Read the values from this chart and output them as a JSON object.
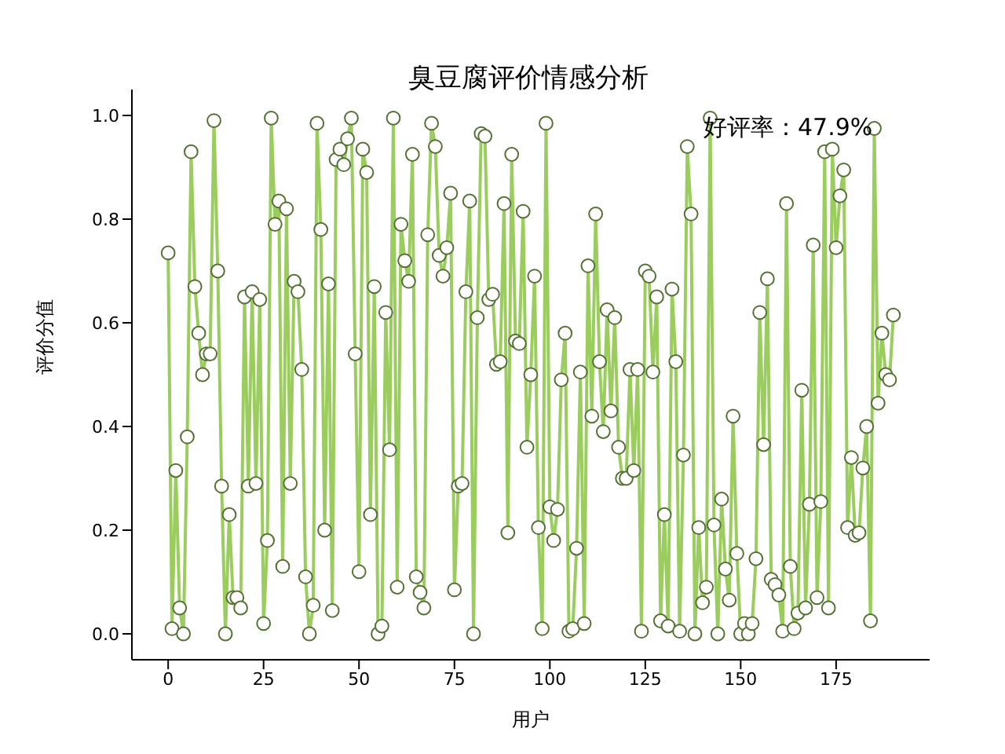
{
  "chart_data": {
    "type": "line",
    "title": "臭豆腐评价情感分析",
    "xlabel": "用户",
    "ylabel": "评价分值",
    "annotations": [
      "好评率：47.9%"
    ],
    "x": [
      0,
      1,
      2,
      3,
      4,
      5,
      6,
      7,
      8,
      9,
      10,
      11,
      12,
      13,
      14,
      15,
      16,
      17,
      18,
      19,
      20,
      21,
      22,
      23,
      24,
      25,
      26,
      27,
      28,
      29,
      30,
      31,
      32,
      33,
      34,
      35,
      36,
      37,
      38,
      39,
      40,
      41,
      42,
      43,
      44,
      45,
      46,
      47,
      48,
      49,
      50,
      51,
      52,
      53,
      54,
      55,
      56,
      57,
      58,
      59,
      60,
      61,
      62,
      63,
      64,
      65,
      66,
      67,
      68,
      69,
      70,
      71,
      72,
      73,
      74,
      75,
      76,
      77,
      78,
      79,
      80,
      81,
      82,
      83,
      84,
      85,
      86,
      87,
      88,
      89,
      90,
      91,
      92,
      93,
      94,
      95,
      96,
      97,
      98,
      99,
      100,
      101,
      102,
      103,
      104,
      105,
      106,
      107,
      108,
      109,
      110,
      111,
      112,
      113,
      114,
      115,
      116,
      117,
      118,
      119,
      120,
      121,
      122,
      123,
      124,
      125,
      126,
      127,
      128,
      129,
      130,
      131,
      132,
      133,
      134,
      135,
      136,
      137,
      138,
      139,
      140,
      141,
      142,
      143,
      144,
      145,
      146,
      147,
      148,
      149,
      150,
      151,
      152,
      153,
      154,
      155,
      156,
      157,
      158,
      159,
      160,
      161,
      162,
      163,
      164,
      165,
      166,
      167,
      168,
      169,
      170,
      171,
      172,
      173,
      174,
      175,
      176,
      177,
      178,
      179,
      180,
      181,
      182,
      183,
      184,
      185,
      186,
      187,
      188,
      189,
      190
    ],
    "series": [
      {
        "color": "#9acd5e",
        "values": [
          0.735,
          0.01,
          0.315,
          0.05,
          0.0,
          0.38,
          0.93,
          0.67,
          0.58,
          0.5,
          0.54,
          0.54,
          0.99,
          0.7,
          0.285,
          0.0,
          0.23,
          0.07,
          0.07,
          0.05,
          0.65,
          0.285,
          0.66,
          0.29,
          0.645,
          0.02,
          0.18,
          0.995,
          0.79,
          0.835,
          0.13,
          0.82,
          0.29,
          0.68,
          0.66,
          0.51,
          0.11,
          0.0,
          0.055,
          0.985,
          0.78,
          0.2,
          0.675,
          0.045,
          0.915,
          0.935,
          0.905,
          0.955,
          0.995,
          0.54,
          0.12,
          0.935,
          0.89,
          0.23,
          0.67,
          0.0,
          0.015,
          0.62,
          0.355,
          0.995,
          0.09,
          0.79,
          0.72,
          0.68,
          0.925,
          0.11,
          0.08,
          0.05,
          0.77,
          0.985,
          0.94,
          0.73,
          0.69,
          0.745,
          0.85,
          0.085,
          0.285,
          0.29,
          0.66,
          0.835,
          0.0,
          0.61,
          0.965,
          0.96,
          0.645,
          0.655,
          0.52,
          0.525,
          0.83,
          0.195,
          0.925,
          0.565,
          0.56,
          0.815,
          0.36,
          0.5,
          0.69,
          0.205,
          0.01,
          0.985,
          0.245,
          0.18,
          0.24,
          0.49,
          0.58,
          0.005,
          0.01,
          0.165,
          0.505,
          0.02,
          0.71,
          0.42,
          0.81,
          0.525,
          0.39,
          0.625,
          0.43,
          0.61,
          0.36,
          0.3,
          0.3,
          0.51,
          0.315,
          0.51,
          0.005,
          0.7,
          0.69,
          0.505,
          0.65,
          0.025,
          0.23,
          0.015,
          0.665,
          0.525,
          0.005,
          0.345,
          0.94,
          0.81,
          0.0,
          0.205,
          0.06,
          0.09,
          0.995,
          0.21,
          0.0,
          0.26,
          0.125,
          0.065,
          0.42,
          0.155,
          0.0,
          0.02,
          0.0,
          0.02,
          0.145,
          0.62,
          0.365,
          0.685,
          0.105,
          0.095,
          0.075,
          0.005,
          0.83,
          0.13,
          0.01,
          0.04,
          0.47,
          0.05,
          0.25,
          0.75,
          0.07,
          0.255,
          0.93,
          0.05,
          0.935,
          0.745,
          0.845,
          0.895,
          0.205,
          0.34,
          0.19,
          0.195,
          0.32,
          0.4,
          0.025,
          0.975,
          0.445,
          0.58,
          0.5,
          0.49,
          0.615
        ]
      }
    ],
    "marker": "circle",
    "line_style": "solid",
    "xlim": [
      -9.5,
      199.5
    ],
    "xticks": [
      0,
      25,
      50,
      75,
      100,
      125,
      150,
      175
    ],
    "ylim": [
      -0.05,
      1.05
    ],
    "yticks": [
      {
        "value": 0,
        "label": "0.0"
      },
      {
        "value": 0.2,
        "label": "0.2"
      },
      {
        "value": 0.4,
        "label": "0.4"
      },
      {
        "value": 0.6,
        "label": "0.6"
      },
      {
        "value": 0.8,
        "label": "0.8"
      },
      {
        "value": 1,
        "label": "1.0"
      }
    ]
  }
}
